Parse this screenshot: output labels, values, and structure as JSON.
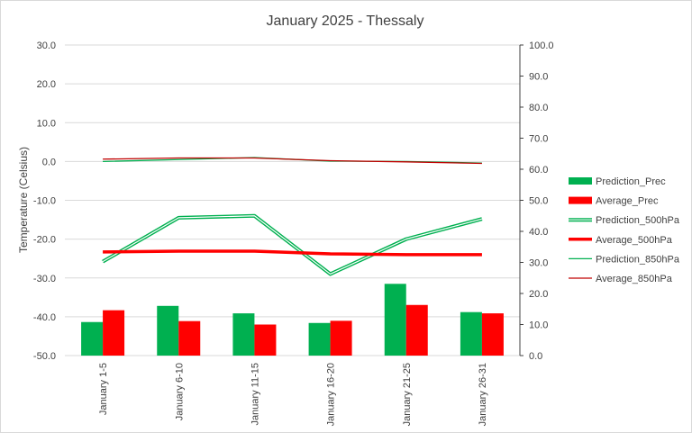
{
  "chart_data": {
    "type": "bar",
    "title": "January 2025 - Thessaly",
    "ylabel": "Temperature (Celsius)",
    "xlabel": "",
    "categories": [
      "January 1-5",
      "January 6-10",
      "January 11-15",
      "January 16-20",
      "January 21-25",
      "January 26-31"
    ],
    "ylim": [
      -50,
      30
    ],
    "ytick_step": 10,
    "y2lim": [
      0,
      100
    ],
    "y2tick_step": 10,
    "grid": true,
    "legend_position": "right",
    "series": [
      {
        "name": "Prediction_Prec",
        "kind": "bar",
        "axis": "right",
        "color": "#00B050",
        "values": [
          10.8,
          16.0,
          13.6,
          10.5,
          23.1,
          14.0
        ]
      },
      {
        "name": "Average_Prec",
        "kind": "bar",
        "axis": "right",
        "color": "#FF0000",
        "values": [
          14.6,
          11.1,
          10.0,
          11.2,
          16.3,
          13.6
        ]
      },
      {
        "name": "Prediction_500hPa",
        "kind": "line",
        "style": "double",
        "axis": "left",
        "color": "#00B050",
        "values": [
          -25.8,
          -14.5,
          -14.0,
          -29.0,
          -20.0,
          -14.8
        ]
      },
      {
        "name": "Average_500hPa",
        "kind": "line",
        "style": "thick",
        "axis": "left",
        "color": "#FF0000",
        "values": [
          -23.3,
          -23.1,
          -23.1,
          -23.8,
          -24.0,
          -24.0
        ]
      },
      {
        "name": "Prediction_850hPa",
        "kind": "line",
        "style": "thin",
        "axis": "left",
        "color": "#00B050",
        "values": [
          0.0,
          0.5,
          1.0,
          0.1,
          0.0,
          -0.4
        ]
      },
      {
        "name": "Average_850hPa",
        "kind": "line",
        "style": "thin",
        "axis": "left",
        "color": "#C00000",
        "values": [
          0.6,
          0.9,
          0.9,
          0.2,
          -0.1,
          -0.5
        ]
      }
    ]
  }
}
